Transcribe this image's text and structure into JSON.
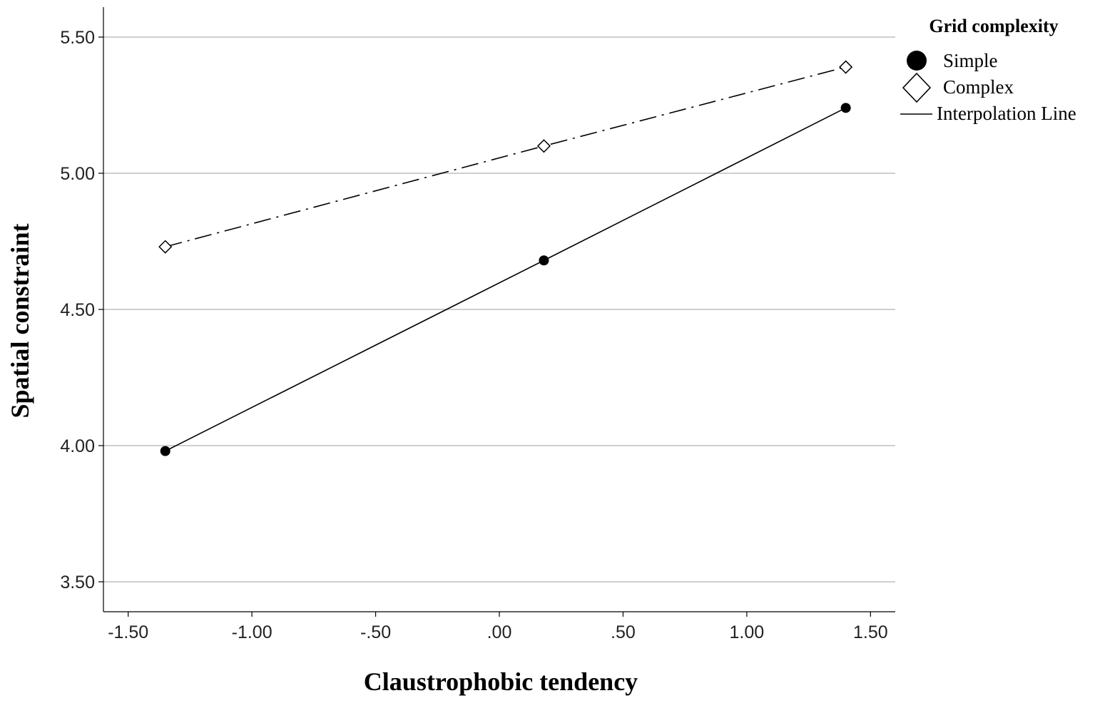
{
  "chart_data": {
    "type": "line",
    "xlabel": "Claustrophobic tendency",
    "ylabel": "Spatial constraint",
    "xlim": [
      -1.6,
      1.6
    ],
    "ylim": [
      3.39,
      5.61
    ],
    "x_ticks": [
      -1.5,
      -1.0,
      -0.5,
      0.0,
      0.5,
      1.0,
      1.5
    ],
    "x_tick_labels": [
      "-1.50",
      "-1.00",
      "-.50",
      ".00",
      ".50",
      "1.00",
      "1.50"
    ],
    "y_ticks": [
      3.5,
      4.0,
      4.5,
      5.0,
      5.5
    ],
    "y_tick_labels": [
      "3.50",
      "4.00",
      "4.50",
      "5.00",
      "5.50"
    ],
    "grid": "horizontal",
    "legend_position": "top-right",
    "legend": {
      "title": "Grid complexity",
      "items": [
        {
          "label": "Simple",
          "marker": "filled-circle"
        },
        {
          "label": "Complex",
          "marker": "open-diamond"
        },
        {
          "label": "Interpolation Line",
          "marker": "line"
        }
      ]
    },
    "series": [
      {
        "name": "Simple",
        "x": [
          -1.35,
          0.18,
          1.4
        ],
        "y": [
          3.98,
          4.68,
          5.24
        ],
        "marker": "filled-circle",
        "line_style": "solid",
        "color": "#000000"
      },
      {
        "name": "Complex",
        "x": [
          -1.35,
          0.18,
          1.4
        ],
        "y": [
          4.73,
          5.1,
          5.39
        ],
        "marker": "open-diamond",
        "line_style": "dash-dot",
        "color": "#000000"
      }
    ]
  }
}
